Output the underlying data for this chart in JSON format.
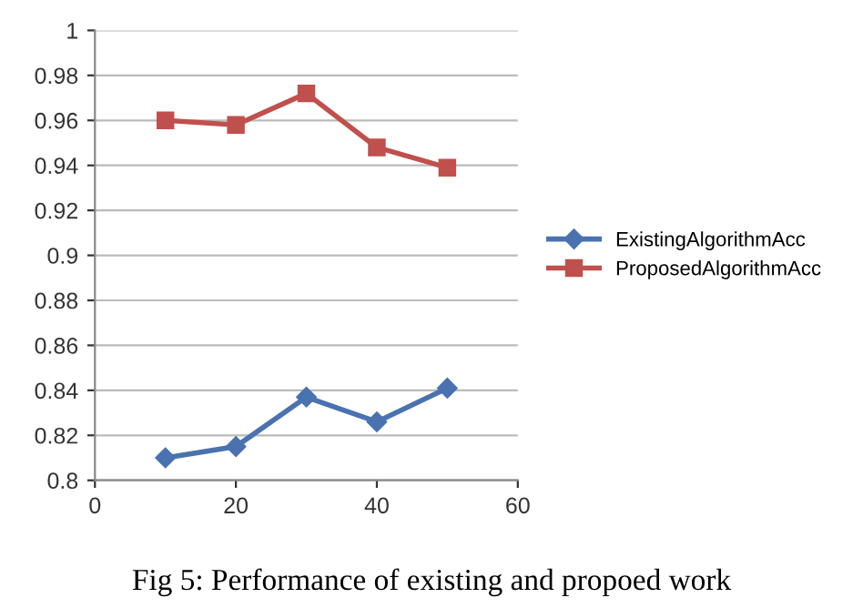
{
  "chart_data": {
    "type": "line",
    "x": [
      10,
      20,
      30,
      40,
      50
    ],
    "series": [
      {
        "name": "ExistingAlgorithmAcc",
        "color": "#4a72b0",
        "values": [
          0.81,
          0.815,
          0.837,
          0.826,
          0.841
        ],
        "marker": "diamond"
      },
      {
        "name": "ProposedAlgorithmAcc",
        "color": "#c0504d",
        "values": [
          0.96,
          0.958,
          0.972,
          0.948,
          0.939
        ],
        "marker": "square"
      }
    ],
    "xlim": [
      0,
      60
    ],
    "xticks": [
      0,
      20,
      40,
      60
    ],
    "ylim": [
      0.8,
      1
    ],
    "yticks": [
      0.8,
      0.82,
      0.84,
      0.86,
      0.88,
      0.9,
      0.92,
      0.94,
      0.96,
      0.98,
      1
    ],
    "grid": "y",
    "legend": "right",
    "line_style": "solid",
    "annotations": [
      "Fig 5: Performance of existing and propoed work"
    ]
  }
}
